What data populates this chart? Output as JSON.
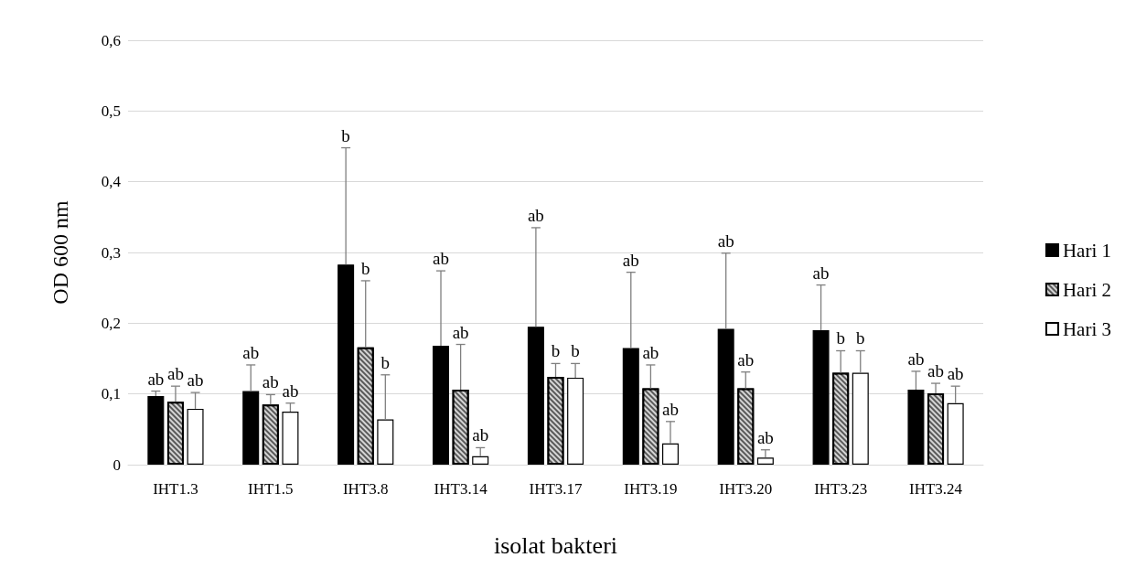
{
  "chart_data": {
    "type": "bar",
    "xlabel": "isolat bakteri",
    "ylabel": "OD 600 nm",
    "categories": [
      "IHT1.3",
      "IHT1.5",
      "IHT3.8",
      "IHT3.14",
      "IHT3.17",
      "IHT3.19",
      "IHT3.20",
      "IHT3.23",
      "IHT3.24"
    ],
    "ylim": [
      0,
      0.6
    ],
    "yticks": [
      0,
      {
        "value": 0.1,
        "label": "0,1"
      },
      {
        "value": 0.2,
        "label": "0,2"
      },
      {
        "value": 0.3,
        "label": "0,3"
      },
      {
        "value": 0.4,
        "label": "0,4"
      },
      {
        "value": 0.5,
        "label": "0,5"
      },
      {
        "value": 0.6,
        "label": "0,6"
      }
    ],
    "grid": "y",
    "legend": "right",
    "series": [
      {
        "name": "Hari 1",
        "color": "#000000",
        "values": [
          0.097,
          0.104,
          0.283,
          0.168,
          0.195,
          0.165,
          0.192,
          0.19,
          0.106
        ],
        "errors": [
          [
            0.097,
            0.104
          ],
          [
            0.104,
            0.141
          ],
          [
            0.283,
            0.448
          ],
          [
            0.168,
            0.274
          ],
          [
            0.195,
            0.335
          ],
          [
            0.165,
            0.272
          ],
          [
            0.192,
            0.299
          ],
          [
            0.19,
            0.254
          ],
          [
            0.106,
            0.132
          ]
        ]
      },
      {
        "name": "Hari 2",
        "color": "#595959",
        "values": [
          0.089,
          0.085,
          0.166,
          0.106,
          0.124,
          0.108,
          0.108,
          0.13,
          0.101
        ],
        "errors": [
          [
            0.089,
            0.111
          ],
          [
            0.085,
            0.099
          ],
          [
            0.166,
            0.26
          ],
          [
            0.106,
            0.17
          ],
          [
            0.124,
            0.143
          ],
          [
            0.108,
            0.141
          ],
          [
            0.108,
            0.131
          ],
          [
            0.13,
            0.161
          ],
          [
            0.101,
            0.115
          ]
        ]
      },
      {
        "name": "Hari 3",
        "color": "#ffffff",
        "values": [
          0.079,
          0.075,
          0.064,
          0.012,
          0.123,
          0.03,
          0.01,
          0.13,
          0.087
        ],
        "errors": [
          [
            0.079,
            0.102
          ],
          [
            0.075,
            0.087
          ],
          [
            0.064,
            0.127
          ],
          [
            0.012,
            0.024
          ],
          [
            0.123,
            0.143
          ],
          [
            0.03,
            0.061
          ],
          [
            0.01,
            0.021
          ],
          [
            0.13,
            0.161
          ],
          [
            0.087,
            0.111
          ]
        ]
      }
    ],
    "annotations": [
      "ab",
      "ab",
      "ab",
      "ab",
      "ab",
      "ab",
      "b",
      "b",
      "b",
      "ab",
      "ab",
      "ab",
      "ab",
      "b",
      "b",
      "ab",
      "ab",
      "ab",
      "ab",
      "ab",
      "ab",
      "ab",
      "b",
      "b",
      "ab",
      "ab",
      "ab"
    ]
  }
}
